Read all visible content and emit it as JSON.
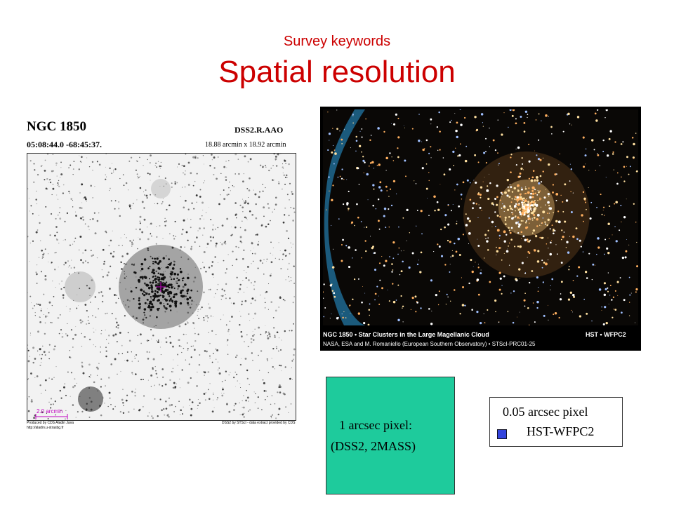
{
  "header": {
    "subtitle": "Survey keywords",
    "title": "Spatial resolution"
  },
  "left_image": {
    "object": "NGC 1850",
    "survey": "DSS2.R.AAO",
    "coords": "05:08:44.0 -68:45:37.",
    "size": "18.88 arcmin x 18.92 arcmin",
    "scale": "2.0 arcmin",
    "credit_left_1": "Produced by CDS Aladin Java",
    "credit_left_2": "http://aladin.u-strasbg.fr",
    "credit_right": "DSS2 by STScI - data extract provided by CDS"
  },
  "right_image": {
    "caption": "NGC 1850 • Star Clusters in the Large Magellanic Cloud",
    "instrument": "HST • WFPC2",
    "credit": "NASA, ESA and M. Romaniello (European Southern Observatory) • STScI-PRC01-25"
  },
  "green_box": {
    "line1": "1 arcsec pixel:",
    "line2": "(DSS2, 2MASS)"
  },
  "legend_box": {
    "line1": "0.05 arcsec pixel",
    "line2": "HST-WFPC2"
  }
}
